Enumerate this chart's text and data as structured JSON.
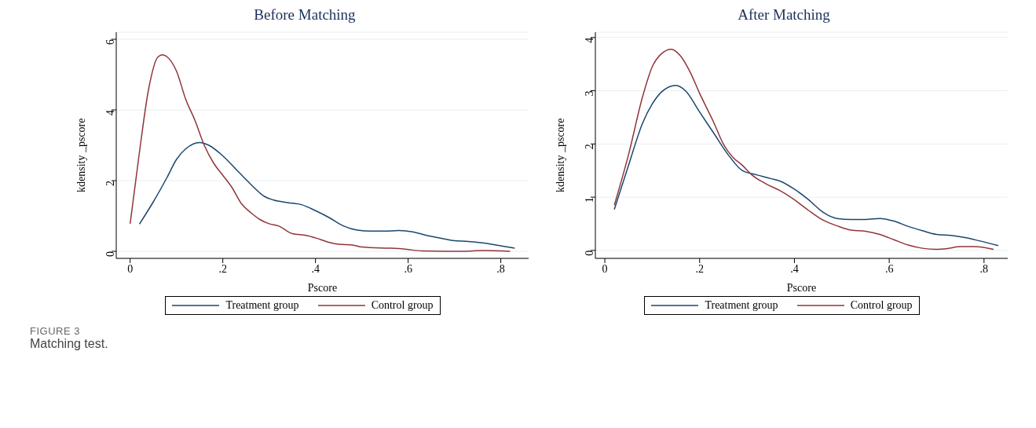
{
  "chart_data": [
    {
      "type": "line",
      "title": "Before Matching",
      "xlabel": "Pscore",
      "ylabel": "kdensity _pscore",
      "xlim": [
        -0.03,
        0.86
      ],
      "ylim": [
        -0.2,
        6.2
      ],
      "xticks": [
        0,
        {
          "value": 0.2,
          "label": ".2"
        },
        {
          "value": 0.4,
          "label": ".4"
        },
        {
          "value": 0.6,
          "label": ".6"
        },
        {
          "value": 0.8,
          "label": ".8"
        }
      ],
      "yticks": [
        0,
        2,
        4,
        6
      ],
      "grid": "y",
      "legend": "bottom",
      "marker": "none",
      "line_style": "solid",
      "annotations": [
        "FIGURE 3",
        "Matching test."
      ],
      "series": [
        {
          "name": "Treatment group",
          "color": "#1a476f",
          "x": [
            0.02,
            0.05,
            0.08,
            0.1,
            0.12,
            0.15,
            0.17,
            0.2,
            0.23,
            0.26,
            0.29,
            0.31,
            0.34,
            0.37,
            0.4,
            0.43,
            0.46,
            0.49,
            0.52,
            0.55,
            0.58,
            0.61,
            0.64,
            0.67,
            0.7,
            0.73,
            0.76,
            0.79,
            0.83
          ],
          "values": [
            0.77,
            1.4,
            2.1,
            2.6,
            2.9,
            3.08,
            3.0,
            2.7,
            2.3,
            1.9,
            1.55,
            1.45,
            1.38,
            1.32,
            1.15,
            0.95,
            0.72,
            0.6,
            0.57,
            0.57,
            0.59,
            0.55,
            0.45,
            0.37,
            0.3,
            0.28,
            0.24,
            0.18,
            0.09
          ]
        },
        {
          "name": "Control group",
          "color": "#90353b",
          "x": [
            0.0,
            0.02,
            0.04,
            0.06,
            0.07,
            0.08,
            0.1,
            0.12,
            0.14,
            0.16,
            0.18,
            0.2,
            0.22,
            0.24,
            0.26,
            0.28,
            0.3,
            0.32,
            0.35,
            0.38,
            0.4,
            0.43,
            0.45,
            0.48,
            0.5,
            0.55,
            0.58,
            0.6,
            0.63,
            0.68,
            0.72,
            0.76,
            0.82
          ],
          "values": [
            0.78,
            2.8,
            4.6,
            5.5,
            5.56,
            5.5,
            5.1,
            4.3,
            3.7,
            3.0,
            2.5,
            2.15,
            1.8,
            1.35,
            1.1,
            0.9,
            0.78,
            0.72,
            0.5,
            0.45,
            0.38,
            0.25,
            0.2,
            0.18,
            0.12,
            0.09,
            0.08,
            0.05,
            0.01,
            0.0,
            0.0,
            0.02,
            0.0
          ]
        }
      ]
    },
    {
      "type": "line",
      "title": "After Matching",
      "xlabel": "Pscore",
      "ylabel": "kdensity _pscore",
      "xlim": [
        -0.02,
        0.85
      ],
      "ylim": [
        -0.15,
        4.1
      ],
      "xticks": [
        0,
        {
          "value": 0.2,
          "label": ".2"
        },
        {
          "value": 0.4,
          "label": ".4"
        },
        {
          "value": 0.6,
          "label": ".6"
        },
        {
          "value": 0.8,
          "label": ".8"
        }
      ],
      "yticks": [
        0,
        1,
        2,
        3,
        4
      ],
      "grid": "y",
      "legend": "bottom",
      "marker": "none",
      "line_style": "solid",
      "series": [
        {
          "name": "Treatment group",
          "color": "#1a476f",
          "x": [
            0.02,
            0.05,
            0.08,
            0.1,
            0.12,
            0.15,
            0.17,
            0.2,
            0.23,
            0.26,
            0.29,
            0.32,
            0.35,
            0.37,
            0.4,
            0.43,
            0.46,
            0.49,
            0.52,
            0.55,
            0.58,
            0.61,
            0.64,
            0.67,
            0.7,
            0.73,
            0.76,
            0.79,
            0.83
          ],
          "values": [
            0.77,
            1.6,
            2.4,
            2.75,
            2.98,
            3.1,
            3.0,
            2.6,
            2.2,
            1.8,
            1.5,
            1.42,
            1.35,
            1.3,
            1.15,
            0.95,
            0.72,
            0.6,
            0.58,
            0.58,
            0.6,
            0.55,
            0.45,
            0.37,
            0.3,
            0.28,
            0.24,
            0.18,
            0.09
          ]
        },
        {
          "name": "Control group",
          "color": "#90353b",
          "x": [
            0.02,
            0.05,
            0.08,
            0.1,
            0.12,
            0.14,
            0.16,
            0.18,
            0.2,
            0.23,
            0.25,
            0.27,
            0.29,
            0.31,
            0.34,
            0.37,
            0.4,
            0.43,
            0.46,
            0.49,
            0.52,
            0.55,
            0.58,
            0.61,
            0.64,
            0.67,
            0.7,
            0.72,
            0.75,
            0.78,
            0.82
          ],
          "values": [
            0.85,
            1.8,
            2.9,
            3.45,
            3.7,
            3.78,
            3.65,
            3.35,
            2.95,
            2.4,
            2.0,
            1.75,
            1.6,
            1.42,
            1.25,
            1.12,
            0.95,
            0.75,
            0.57,
            0.46,
            0.38,
            0.36,
            0.3,
            0.2,
            0.1,
            0.04,
            0.02,
            0.03,
            0.07,
            0.07,
            0.02
          ]
        }
      ]
    }
  ]
}
